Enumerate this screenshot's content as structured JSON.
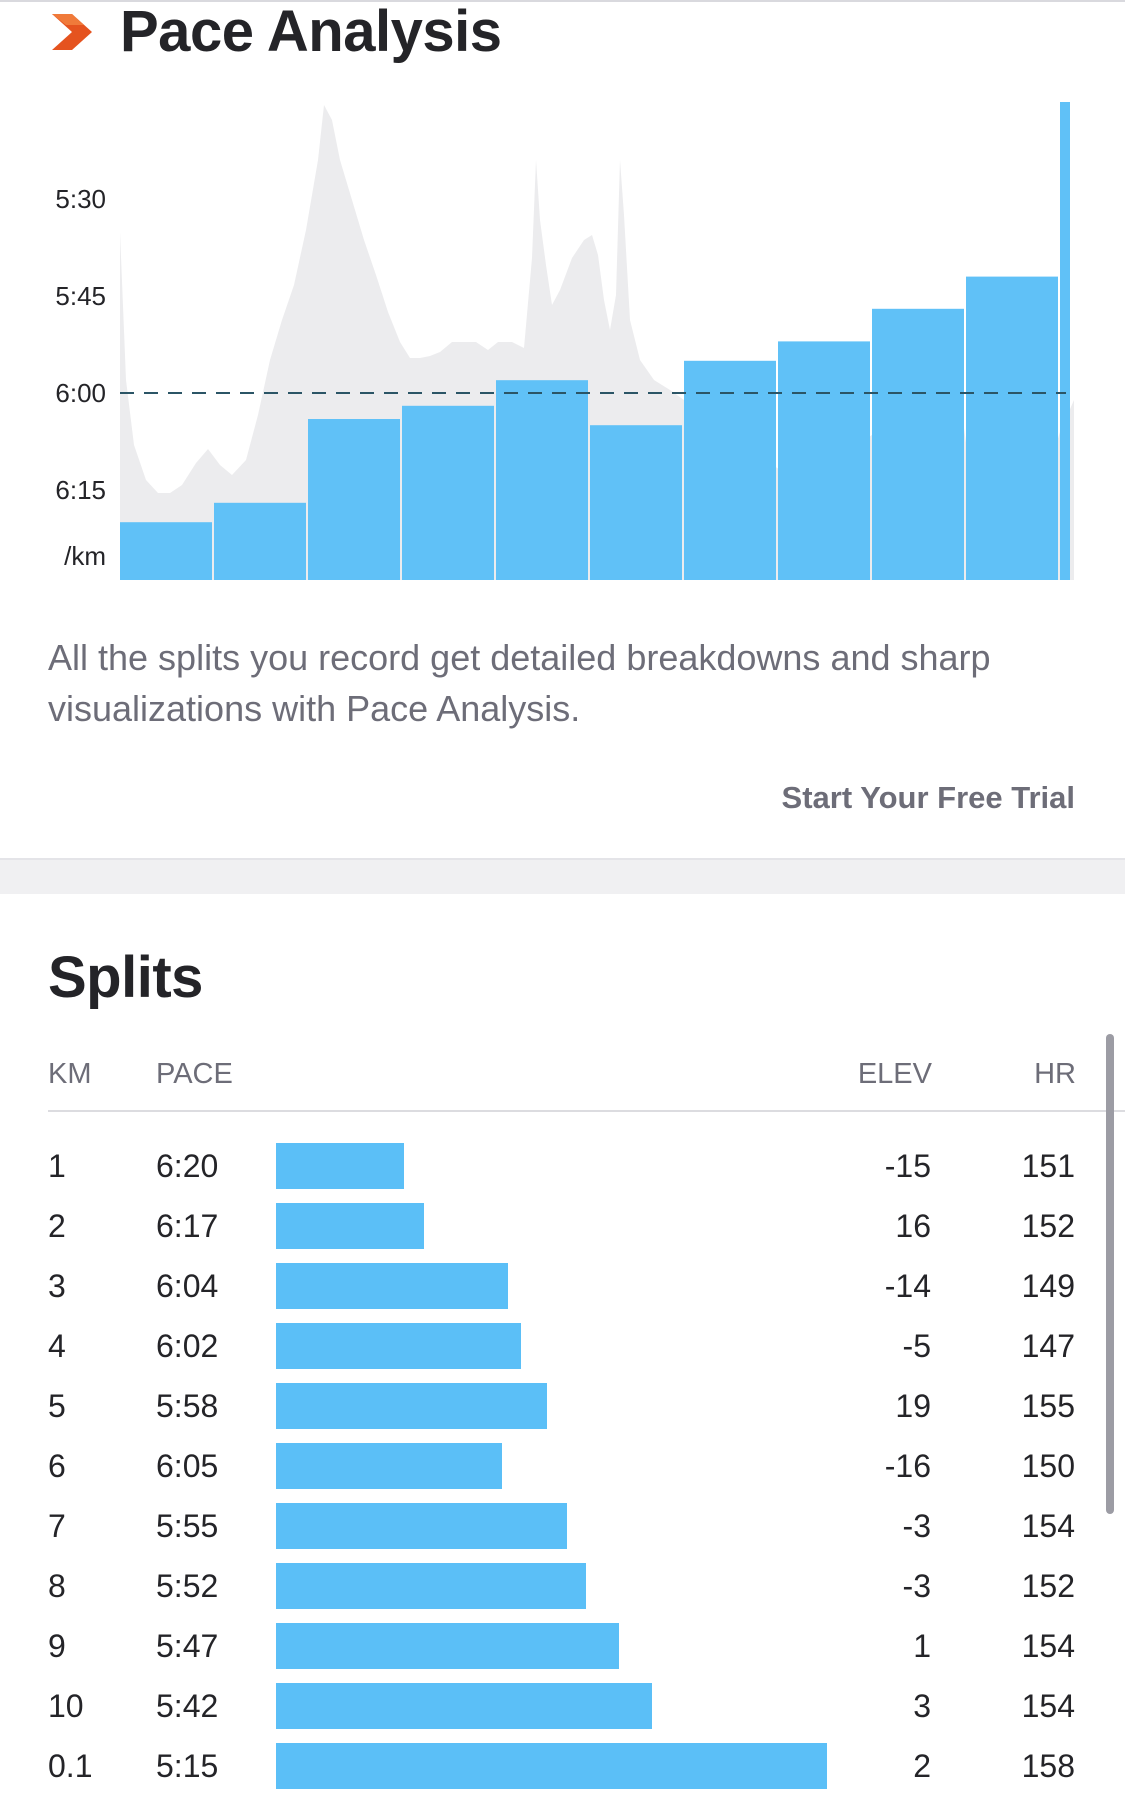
{
  "pace_analysis": {
    "title": "Pace Analysis",
    "description": "All the splits you record get detailed breakdowns and sharp visualizations with Pace Analysis.",
    "cta_label": "Start Your Free Trial",
    "chart_data": {
      "type": "bar",
      "title": "",
      "y_ticks": [
        "5:30",
        "5:45",
        "6:00",
        "6:15"
      ],
      "y_unit_label": "/km",
      "reference_line": "6:00",
      "average_pace_minutes": 6.0,
      "categories": [
        "1",
        "2",
        "3",
        "4",
        "5",
        "6",
        "7",
        "8",
        "9",
        "10",
        "0.1"
      ],
      "values_pace_minutes": [
        6.333,
        6.283,
        6.067,
        6.033,
        5.967,
        6.083,
        5.917,
        5.867,
        5.783,
        5.7,
        5.25
      ],
      "widths_km": [
        1,
        1,
        1,
        1,
        1,
        1,
        1,
        1,
        1,
        1,
        0.1
      ],
      "bar_color": "#5bbff7",
      "background_area_color": "#ececee",
      "reference_line_color": "#2b5566"
    }
  },
  "splits": {
    "title": "Splits",
    "headers": {
      "km": "KM",
      "pace": "PACE",
      "elev": "ELEV",
      "hr": "HR"
    },
    "bar_color": "#5bbff7",
    "rows": [
      {
        "km": "1",
        "pace": "6:20",
        "pace_min": 6.333,
        "elev": "-15",
        "hr": "151"
      },
      {
        "km": "2",
        "pace": "6:17",
        "pace_min": 6.283,
        "elev": "16",
        "hr": "152"
      },
      {
        "km": "3",
        "pace": "6:04",
        "pace_min": 6.067,
        "elev": "-14",
        "hr": "149"
      },
      {
        "km": "4",
        "pace": "6:02",
        "pace_min": 6.033,
        "elev": "-5",
        "hr": "147"
      },
      {
        "km": "5",
        "pace": "5:58",
        "pace_min": 5.967,
        "elev": "19",
        "hr": "155"
      },
      {
        "km": "6",
        "pace": "6:05",
        "pace_min": 6.083,
        "elev": "-16",
        "hr": "150"
      },
      {
        "km": "7",
        "pace": "5:55",
        "pace_min": 5.917,
        "elev": "-3",
        "hr": "154"
      },
      {
        "km": "8",
        "pace": "5:52",
        "pace_min": 5.867,
        "elev": "-3",
        "hr": "152"
      },
      {
        "km": "9",
        "pace": "5:47",
        "pace_min": 5.783,
        "elev": "1",
        "hr": "154"
      },
      {
        "km": "10",
        "pace": "5:42",
        "pace_min": 5.7,
        "elev": "3",
        "hr": "154"
      },
      {
        "km": "0.1",
        "pace": "5:15",
        "pace_min": 5.25,
        "elev": "2",
        "hr": "158"
      }
    ]
  }
}
